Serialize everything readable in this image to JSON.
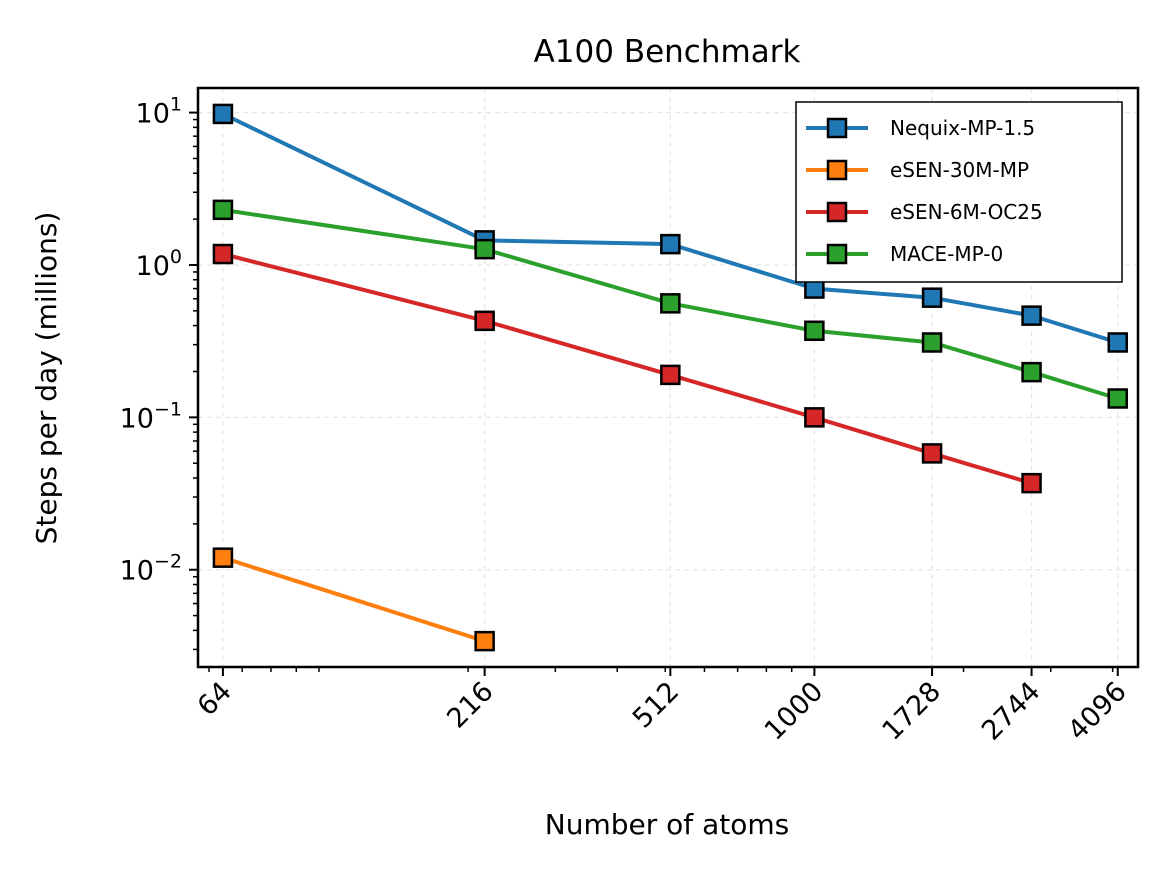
{
  "chart_data": {
    "type": "line",
    "title": "A100 Benchmark",
    "xlabel": "Number of atoms",
    "ylabel": "Steps per day (millions)",
    "x_scale": "log",
    "y_scale": "log",
    "x": [
      64,
      216,
      512,
      1000,
      1728,
      2744,
      4096
    ],
    "x_tick_labels": [
      "64",
      "216",
      "512",
      "1000",
      "1728",
      "2744",
      "4096"
    ],
    "xlim": [
      57,
      4500
    ],
    "ylim": [
      0.0023,
      14.5
    ],
    "y_ticks": [
      {
        "value": 10,
        "base": "10",
        "exp": "1"
      },
      {
        "value": 1,
        "base": "10",
        "exp": "0"
      },
      {
        "value": 0.1,
        "base": "10",
        "exp": "−1"
      },
      {
        "value": 0.01,
        "base": "10",
        "exp": "−2"
      }
    ],
    "grid": true,
    "legend_position": "top-right",
    "marker": "square",
    "series": [
      {
        "name": "Nequix-MP-1.5",
        "color": "#1f77b4",
        "x": [
          64,
          216,
          512,
          1000,
          1728,
          2744,
          4096
        ],
        "values": [
          9.8,
          1.45,
          1.37,
          0.7,
          0.61,
          0.465,
          0.31
        ]
      },
      {
        "name": "eSEN-30M-MP",
        "color": "#ff7f0e",
        "x": [
          64,
          216
        ],
        "values": [
          0.012,
          0.0034
        ]
      },
      {
        "name": "eSEN-6M-OC25",
        "color": "#d62728",
        "x": [
          64,
          216,
          512,
          1000,
          1728,
          2744
        ],
        "values": [
          1.18,
          0.43,
          0.19,
          0.1,
          0.058,
          0.037
        ]
      },
      {
        "name": "MACE-MP-0",
        "color": "#2ca02c",
        "x": [
          64,
          216,
          512,
          1000,
          1728,
          2744,
          4096
        ],
        "values": [
          2.3,
          1.27,
          0.56,
          0.37,
          0.31,
          0.198,
          0.133
        ]
      }
    ]
  }
}
